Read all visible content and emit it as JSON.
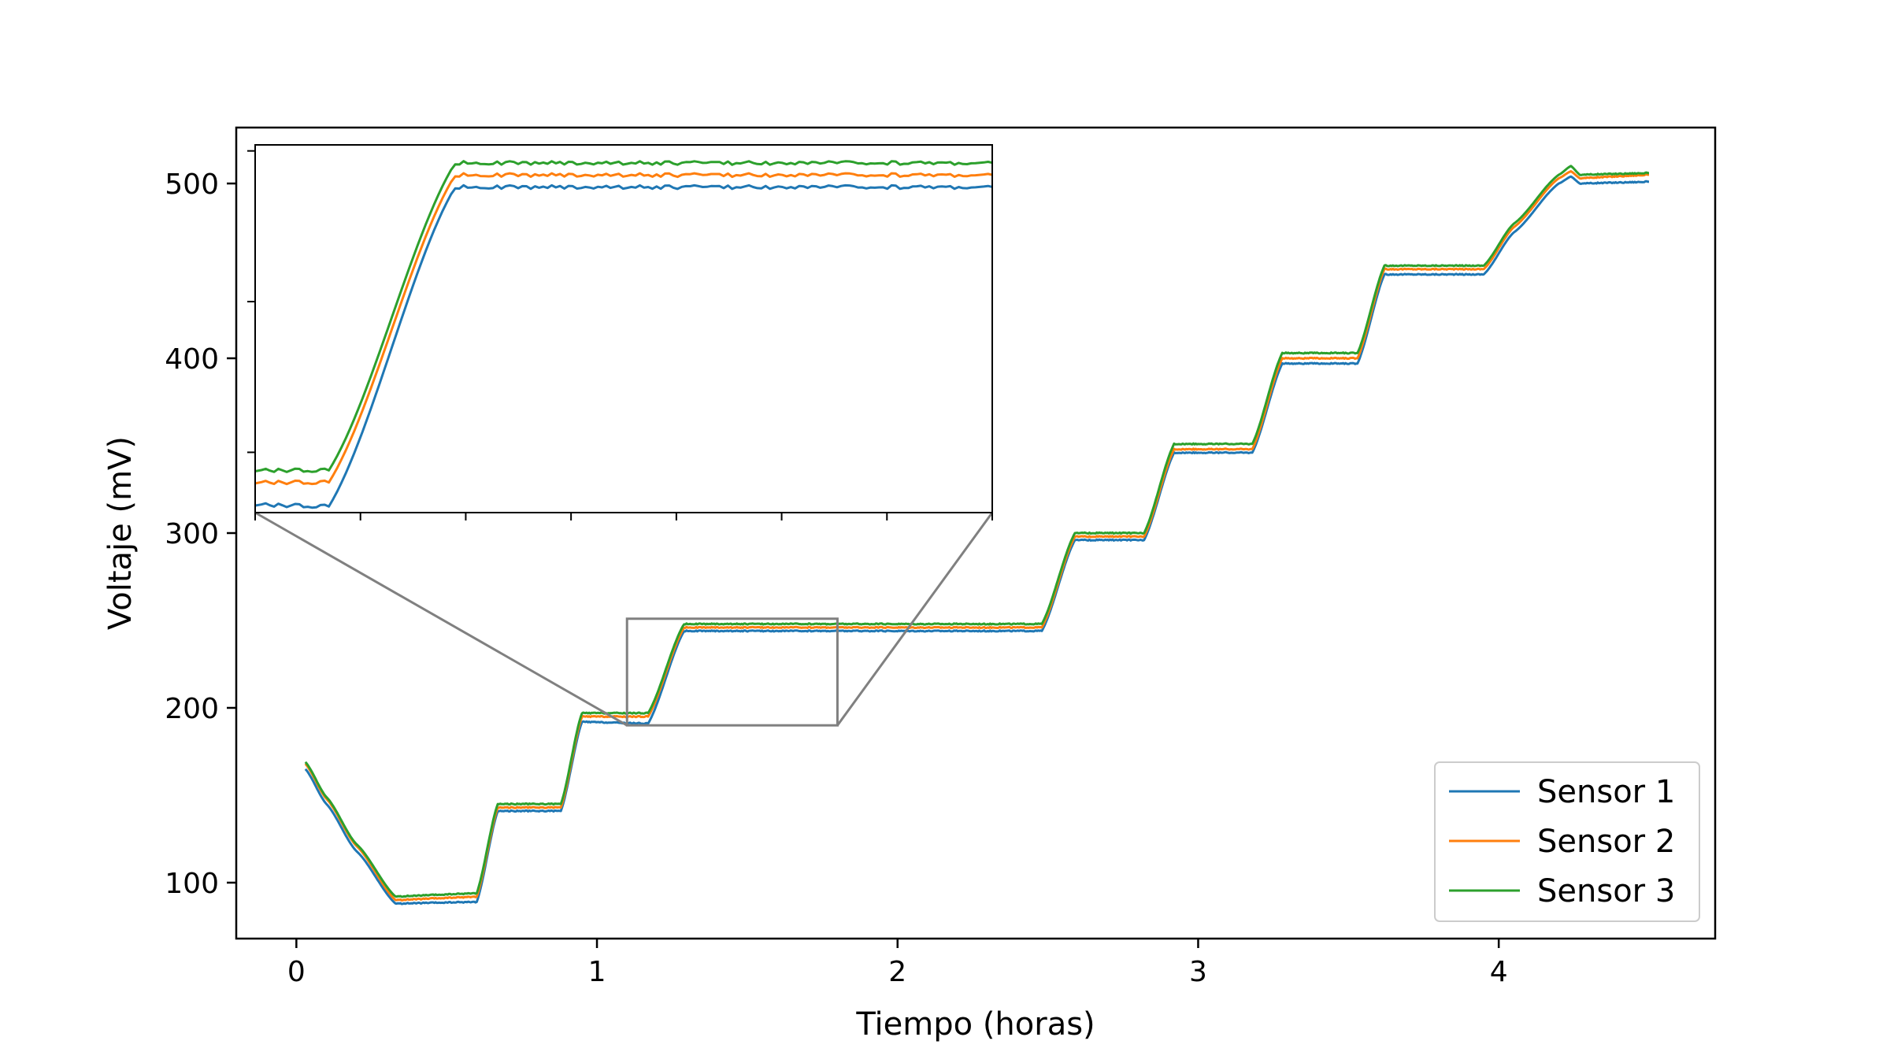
{
  "chart_data": {
    "type": "line",
    "title": "",
    "xlabel": "Tiempo (horas)",
    "ylabel": "Voltaje (mV)",
    "xlim": [
      -0.2,
      4.72
    ],
    "ylim": [
      68,
      532
    ],
    "xticks": [
      0,
      1,
      2,
      3,
      4
    ],
    "yticks": [
      100,
      200,
      300,
      400,
      500
    ],
    "grid": false,
    "legend_position": "lower-right",
    "series": [
      {
        "name": "Sensor 1",
        "color": "#1f77b4",
        "offset": 0,
        "x": [
          0.03,
          0.1,
          0.2,
          0.33,
          0.6,
          0.67,
          0.88,
          0.95,
          1.17,
          1.29,
          1.8,
          2.48,
          2.59,
          2.82,
          2.92,
          3.18,
          3.28,
          3.53,
          3.62,
          3.95,
          4.05,
          4.2,
          4.24,
          4.27,
          4.5
        ],
        "y": [
          165,
          145,
          118,
          88,
          89,
          141,
          141,
          192,
          191,
          244,
          244,
          244,
          296,
          296,
          346,
          346,
          397,
          397,
          448,
          448,
          472,
          500,
          504,
          500,
          501
        ]
      },
      {
        "name": "Sensor 2",
        "color": "#ff7f0e",
        "offset": 0,
        "x": [
          0.03,
          0.1,
          0.2,
          0.33,
          0.6,
          0.67,
          0.88,
          0.95,
          1.17,
          1.29,
          1.8,
          2.48,
          2.59,
          2.82,
          2.92,
          3.18,
          3.28,
          3.53,
          3.62,
          3.95,
          4.05,
          4.2,
          4.24,
          4.27,
          4.5
        ],
        "y": [
          168,
          148,
          121,
          90,
          92,
          143,
          143,
          195,
          195,
          246,
          246,
          246,
          298,
          298,
          348,
          348,
          400,
          400,
          451,
          451,
          475,
          503,
          507,
          503,
          505
        ]
      },
      {
        "name": "Sensor 3",
        "color": "#2ca02c",
        "offset": 0,
        "x": [
          0.03,
          0.1,
          0.2,
          0.33,
          0.6,
          0.67,
          0.88,
          0.95,
          1.17,
          1.29,
          1.8,
          2.48,
          2.59,
          2.82,
          2.92,
          3.18,
          3.28,
          3.53,
          3.62,
          3.95,
          4.05,
          4.2,
          4.24,
          4.27,
          4.5
        ],
        "y": [
          169,
          149,
          122,
          92,
          94,
          145,
          145,
          197,
          197,
          248,
          248,
          248,
          300,
          300,
          351,
          351,
          403,
          403,
          453,
          453,
          477,
          505,
          510,
          505,
          506
        ]
      }
    ],
    "inset": {
      "xlim": [
        1.1,
        1.8
      ],
      "ylim": [
        190,
        251
      ],
      "indicator_color": "#808080"
    }
  }
}
